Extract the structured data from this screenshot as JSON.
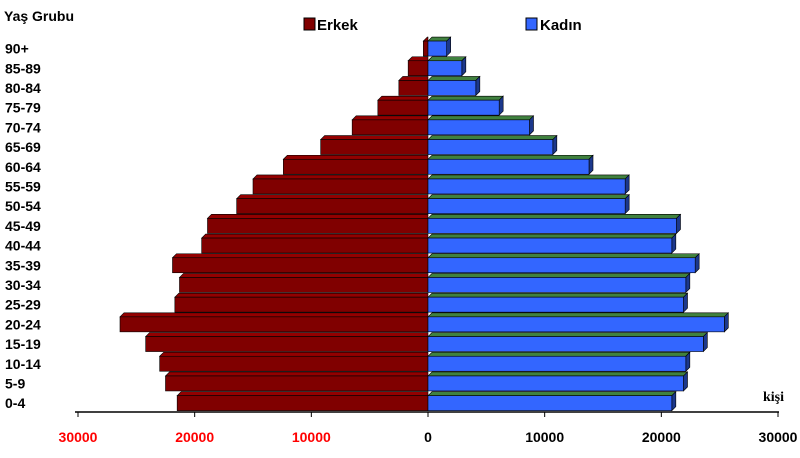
{
  "chart_data": {
    "type": "bar",
    "orientation": "horizontal",
    "title": "Yaş Grubu",
    "unit_label": "kişi",
    "categories": [
      "0-4",
      "5-9",
      "10-14",
      "15-19",
      "20-24",
      "25-29",
      "30-34",
      "35-39",
      "40-44",
      "45-49",
      "50-54",
      "55-59",
      "60-64",
      "65-69",
      "70-74",
      "75-79",
      "80-84",
      "85-89",
      "90+"
    ],
    "series": [
      {
        "name": "Erkek",
        "color": "#800000",
        "values": [
          21500,
          22500,
          23000,
          24200,
          26400,
          21700,
          21300,
          21900,
          19400,
          18900,
          16400,
          15000,
          12400,
          9200,
          6500,
          4300,
          2500,
          1700,
          400
        ]
      },
      {
        "name": "Kadın",
        "color": "#3366ff",
        "values": [
          20900,
          21900,
          22100,
          23600,
          25400,
          21900,
          22100,
          22900,
          20900,
          21300,
          16900,
          16900,
          13800,
          10700,
          8700,
          6100,
          4100,
          2900,
          1600
        ]
      }
    ],
    "xlim": [
      -30000,
      30000
    ],
    "x_ticks": [
      {
        "value": -30000,
        "label": "30000"
      },
      {
        "value": -20000,
        "label": "20000"
      },
      {
        "value": -10000,
        "label": "10000"
      },
      {
        "value": 0,
        "label": "0"
      },
      {
        "value": 10000,
        "label": "10000"
      },
      {
        "value": 20000,
        "label": "20000"
      },
      {
        "value": 30000,
        "label": "30000"
      }
    ],
    "legend_position": "top-center",
    "grid": false
  }
}
